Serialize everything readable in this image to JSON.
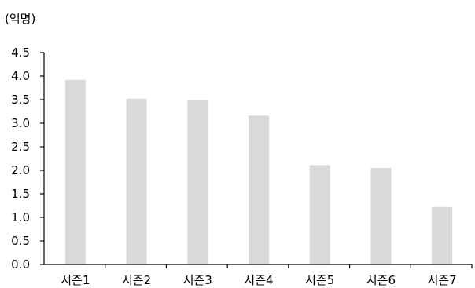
{
  "chart_data": {
    "type": "bar",
    "unit_label": "(억명)",
    "categories": [
      "시즌1",
      "시즌2",
      "시즌3",
      "시즌4",
      "시즌5",
      "시즌6",
      "시즌7"
    ],
    "values": [
      3.92,
      3.52,
      3.49,
      3.16,
      2.11,
      2.05,
      1.22
    ],
    "yticks": [
      "0.0",
      "0.5",
      "1.0",
      "1.5",
      "2.0",
      "2.5",
      "3.0",
      "3.5",
      "4.0",
      "4.5"
    ],
    "ylim": [
      0,
      4.5
    ],
    "grid": false,
    "legend": "none",
    "bar_color": "#d9d9d9",
    "axis_color": "#000000"
  }
}
